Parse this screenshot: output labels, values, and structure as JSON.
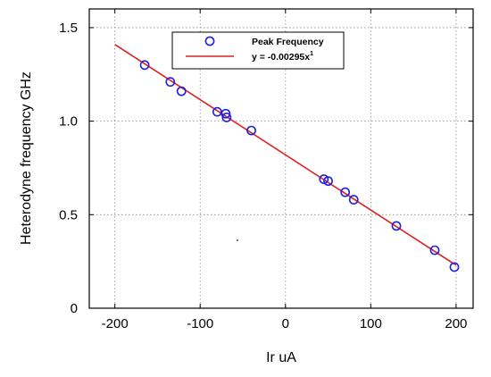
{
  "chart_data": {
    "type": "scatter",
    "title": "",
    "xlabel": "Ir uA",
    "ylabel": "Heterodyne frequency GHz",
    "xlim": [
      -230,
      220
    ],
    "ylim": [
      0,
      1.6
    ],
    "x_ticks": [
      -200,
      -100,
      0,
      100,
      200
    ],
    "x_tick_labels": [
      "-200",
      "-100",
      "0",
      "100",
      "200"
    ],
    "y_ticks": [
      0,
      0.5,
      1.0,
      1.5
    ],
    "y_tick_labels": [
      "0",
      "0.5",
      "1.0",
      "1.5"
    ],
    "grid": true,
    "legend_position": "top-center",
    "series": [
      {
        "name": "Peak Frequency",
        "kind": "scatter",
        "marker": "open-circle",
        "color": "#2020dd",
        "points": [
          [
            -165,
            1.3
          ],
          [
            -135,
            1.21
          ],
          [
            -122,
            1.16
          ],
          [
            -80,
            1.05
          ],
          [
            -70,
            1.04
          ],
          [
            -69,
            1.02
          ],
          [
            -40,
            0.95
          ],
          [
            45,
            0.69
          ],
          [
            50,
            0.68
          ],
          [
            70,
            0.62
          ],
          [
            80,
            0.58
          ],
          [
            130,
            0.44
          ],
          [
            175,
            0.31
          ],
          [
            198,
            0.22
          ]
        ]
      },
      {
        "name": "y = -0.00295x",
        "name_superscript": "1",
        "kind": "line",
        "color": "#dd2222",
        "points": [
          [
            -200,
            1.41
          ],
          [
            200,
            0.23
          ]
        ]
      }
    ]
  }
}
